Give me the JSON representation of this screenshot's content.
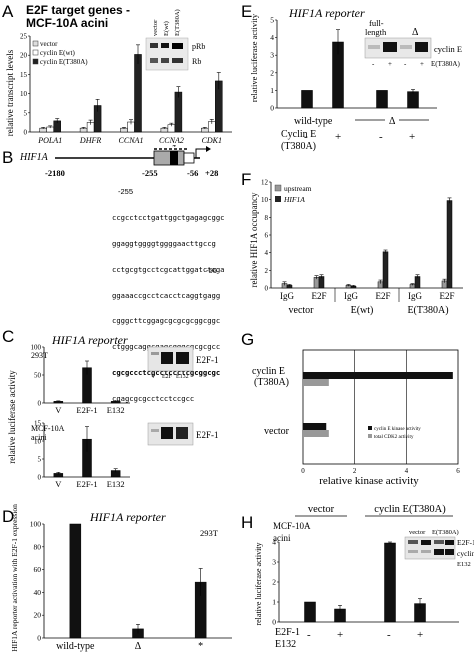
{
  "panels": {
    "A": {
      "label": "A",
      "title_line1": "E2F target genes -",
      "title_line2": "MCF-10A acini",
      "ylabel": "relative transcript levels",
      "legend": [
        "vector",
        "cyclin E(wt)",
        "cyclin E(T380A)"
      ],
      "blot_lanes": [
        "vector",
        "E(wt)",
        "E(T380A)"
      ],
      "blot_bands": [
        "pRb",
        "Rb"
      ]
    },
    "B": {
      "label": "B",
      "gene": "HIF1A",
      "coords": [
        "-2180",
        "-255",
        "-56",
        "+28"
      ],
      "seq_start": "-255",
      "seq_end": "-56",
      "star": "*",
      "sequence": [
        "ccgcctcctgattggctgagagcggc",
        "ggaggtggggtggggaacttgccg",
        "cctgcgtgcctcgcattggatctcga",
        "ggaaaccgcctcacctcaggtgagg",
        "cgggcttcggagcgcgcgcggcggc",
        "ctgggcaggcgagcgggcgcgcgcc",
        "cgcgccctcgcctccctcgcggcgc",
        "cgagcgcgcctcctccgcc"
      ]
    },
    "C": {
      "label": "C",
      "title": "HIF1A reporter",
      "ylabel": "relative luciferase activity",
      "top_cell": "293T",
      "bottom_cell_line1": "MCF-10A",
      "bottom_cell_line2": "acini",
      "band": "E2F-1",
      "blot_lanes": [
        "V",
        "E2F",
        "E132"
      ]
    },
    "D": {
      "label": "D",
      "title": "HIF1A reporter",
      "cell": "293T",
      "ylabel": "% HIF1A reporter activation with E2F-1 expression"
    },
    "E": {
      "label": "E",
      "title": "HIF1A reporter",
      "ylabel": "relative luciferase activity",
      "group_wt": "wild-type",
      "group_delta": "Δ",
      "row_label_line1": "Cyclin E",
      "row_label_line2": "(T380A)",
      "signs": [
        "-",
        "+",
        "-",
        "+"
      ],
      "blot_header_line1": "full-",
      "blot_header_line2": "length",
      "blot_header_delta": "Δ",
      "band": "cyclin E",
      "blot_signs": [
        "-",
        "+",
        "-",
        "+"
      ],
      "blot_sign_label": "E(T380A)"
    },
    "F": {
      "label": "F",
      "ylabel": "relative HIF1A occupancy",
      "legend": [
        "upstream",
        "HIF1A"
      ],
      "groups": [
        "vector",
        "E(wt)",
        "E(T380A)"
      ]
    },
    "G": {
      "label": "G",
      "xlabel": "relative kinase activity",
      "row1_line1": "cyclin E",
      "row1_line2": "(T380A)",
      "row2": "vector",
      "legend": [
        "cyclin E kinase activity",
        "total CDK2 activity"
      ]
    },
    "H": {
      "label": "H",
      "group1": "vector",
      "group2": "cyclin E(T380A)",
      "cell_line1": "MCF-10A",
      "cell_line2": "acini",
      "ylabel": "relative luciferase activity",
      "row_label_line1": "E2F-1",
      "row_label_line2": "E132",
      "signs": [
        "-",
        "+",
        "-",
        "+"
      ],
      "blot_header1": "vector",
      "blot_header2": "E(T380A)",
      "bands": [
        "E2F-1",
        "cyclin E"
      ],
      "blot_sign_label": "E132"
    }
  },
  "chart_data": [
    {
      "panel": "A",
      "type": "bar",
      "categories": [
        "POLA1",
        "DHFR",
        "CCNA1",
        "CCNA2",
        "CDK1"
      ],
      "ylim": [
        0,
        25
      ],
      "yticks": [
        0,
        5,
        10,
        15,
        20,
        25
      ],
      "series": [
        {
          "name": "vector",
          "values": [
            1,
            1,
            1,
            1,
            1
          ],
          "color": "#dddddd"
        },
        {
          "name": "cyclin E(wt)",
          "values": [
            1.3,
            2.5,
            2.6,
            1.9,
            2.7
          ],
          "color": "#ffffff"
        },
        {
          "name": "cyclin E(T380A)",
          "values": [
            2.9,
            6.9,
            20.2,
            10.4,
            13.3
          ],
          "color": "#222222"
        }
      ],
      "errors": [
        [
          0.2,
          0.2,
          0.2,
          0.2,
          0.2
        ],
        [
          0.3,
          0.6,
          0.6,
          0.4,
          0.6
        ],
        [
          0.6,
          1.6,
          2.5,
          1.4,
          2.2
        ]
      ]
    },
    {
      "panel": "C-top",
      "type": "bar",
      "categories": [
        "V",
        "E2F-1",
        "E132"
      ],
      "ylim": [
        0,
        100
      ],
      "yticks": [
        0,
        50,
        100
      ],
      "values": [
        3,
        63,
        3
      ],
      "errors": [
        0.8,
        12,
        0.8
      ]
    },
    {
      "panel": "C-bottom",
      "type": "bar",
      "categories": [
        "V",
        "E2F-1",
        "E132"
      ],
      "ylim": [
        0,
        15
      ],
      "yticks": [
        0,
        5,
        10,
        15
      ],
      "values": [
        1,
        10.5,
        1.8
      ],
      "errors": [
        0.3,
        3.5,
        0.5
      ]
    },
    {
      "panel": "D",
      "type": "bar",
      "categories": [
        "wild-type",
        "Δ",
        "*"
      ],
      "ylim": [
        0,
        100
      ],
      "yticks": [
        0,
        20,
        40,
        60,
        80,
        100
      ],
      "values": [
        100,
        8,
        49
      ],
      "errors": [
        0,
        4,
        12
      ]
    },
    {
      "panel": "E",
      "type": "bar",
      "categories": [
        "wild-type -",
        "wild-type +",
        "Δ -",
        "Δ +"
      ],
      "ylim": [
        0,
        5
      ],
      "yticks": [
        0,
        1,
        2,
        3,
        4,
        5
      ],
      "values": [
        1,
        3.75,
        1,
        0.93
      ],
      "errors": [
        0,
        0.7,
        0,
        0.12
      ]
    },
    {
      "panel": "F",
      "type": "bar",
      "categories": [
        "IgG",
        "E2F",
        "IgG",
        "E2F",
        "IgG",
        "E2F"
      ],
      "ylim": [
        0,
        12
      ],
      "yticks": [
        0,
        2,
        4,
        6,
        8,
        10,
        12
      ],
      "series": [
        {
          "name": "upstream",
          "values": [
            0.5,
            1.2,
            0.3,
            0.7,
            0.4,
            0.8
          ],
          "color": "#999999"
        },
        {
          "name": "HIF1A",
          "values": [
            0.3,
            1.3,
            0.2,
            4.1,
            1.3,
            9.9
          ],
          "color": "#222222"
        }
      ],
      "errors": [
        [
          0.2,
          0.2,
          0.1,
          0.2,
          0.1,
          0.2
        ],
        [
          0.1,
          0.2,
          0.1,
          0.2,
          0.2,
          0.3
        ]
      ]
    },
    {
      "panel": "G",
      "type": "bar",
      "orientation": "horizontal",
      "categories": [
        "cyclin E (T380A)",
        "vector"
      ],
      "xlim": [
        0,
        6
      ],
      "xticks": [
        0,
        2,
        4,
        6
      ],
      "series": [
        {
          "name": "cyclin E kinase activity",
          "values": [
            5.8,
            0.9
          ],
          "color": "#111111"
        },
        {
          "name": "total CDK2 activity",
          "values": [
            1.0,
            1.0
          ],
          "color": "#999999"
        }
      ]
    },
    {
      "panel": "H",
      "type": "bar",
      "categories": [
        "vector -",
        "vector +",
        "cyclin E(T380A) -",
        "cyclin E(T380A) +"
      ],
      "ylim": [
        0,
        4
      ],
      "yticks": [
        0,
        1,
        2,
        3,
        4
      ],
      "values": [
        1,
        0.65,
        3.95,
        0.92
      ],
      "errors": [
        0,
        0.18,
        0.05,
        0.25
      ]
    }
  ]
}
